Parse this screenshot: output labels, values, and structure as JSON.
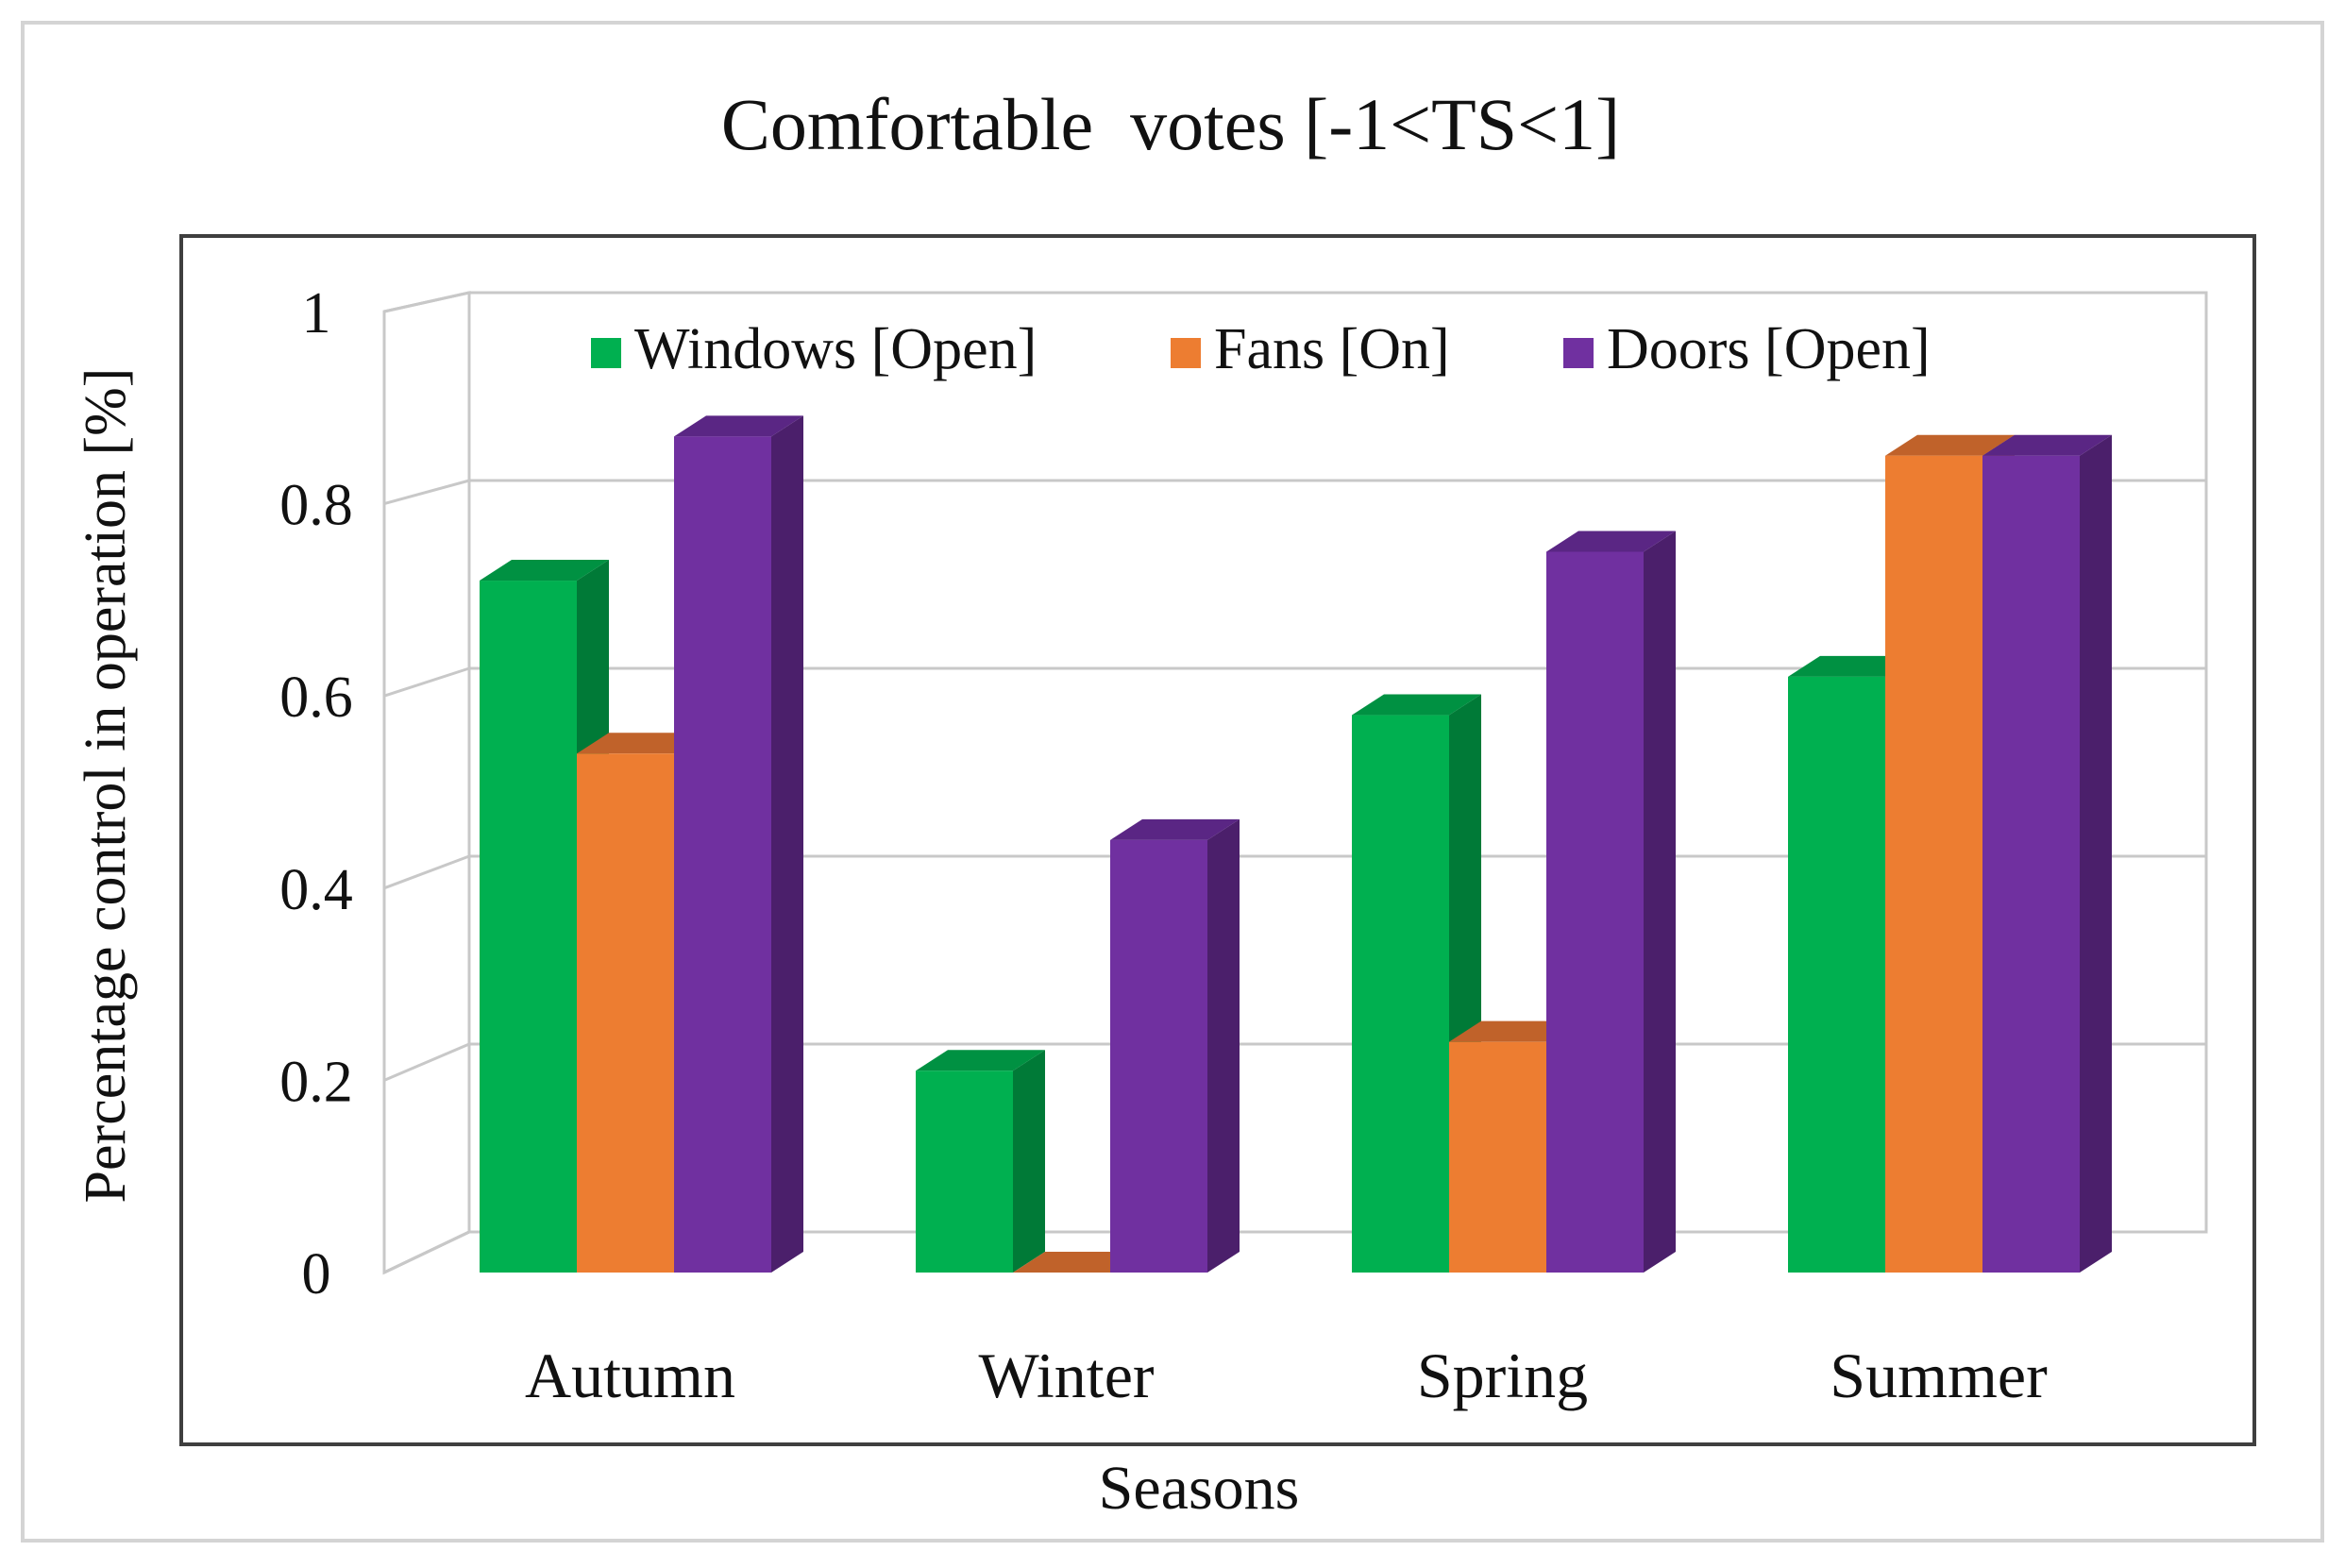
{
  "chart_data": {
    "type": "bar",
    "style": "3d-clustered-column",
    "title": "Comfortable  votes [-1<TS<1]",
    "xlabel": "Seasons",
    "ylabel": "Percentage control in operation [%]",
    "categories": [
      "Autumn",
      "Winter",
      "Spring",
      "Summer"
    ],
    "yticks": [
      "0",
      "0.2",
      "0.4",
      "0.6",
      "0.8",
      "1"
    ],
    "ylim": [
      0,
      1
    ],
    "grid": true,
    "legend_position": "top-inside",
    "series": [
      {
        "name": "Windows [Open]",
        "values": [
          0.72,
          0.21,
          0.58,
          0.62
        ],
        "color": "#00B050",
        "side_color": "#007A37",
        "top_color": "#009142"
      },
      {
        "name": "Fans [On]",
        "values": [
          0.54,
          0.0,
          0.24,
          0.85
        ],
        "color": "#ED7D31",
        "side_color": "#A9561D",
        "top_color": "#C0622A"
      },
      {
        "name": "Doors [Open]",
        "values": [
          0.87,
          0.45,
          0.75,
          0.85
        ],
        "color": "#7030A0",
        "side_color": "#4B1F6B",
        "top_color": "#5A2684"
      }
    ]
  }
}
